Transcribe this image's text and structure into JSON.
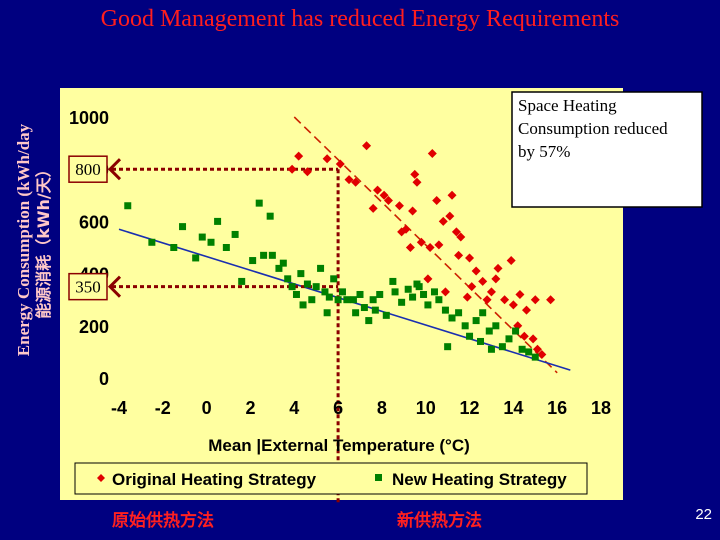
{
  "slide": {
    "title": "Good Management has reduced Energy Requirements",
    "page_number": "22",
    "caption_left": "原始供热方法",
    "caption_right": "新供热方法"
  },
  "chart_data": {
    "type": "scatter",
    "xlabel": "Mean |External Temperature (°C)",
    "ylabel": "Energy Consumption (kWh/day",
    "ylabel_zh": "能源消耗（kWh/天）",
    "xlim": [
      -4,
      18
    ],
    "ylim": [
      0,
      1000
    ],
    "x_ticks": [
      "-4",
      "-2",
      "0",
      "2",
      "4",
      "6",
      "8",
      "10",
      "12",
      "14",
      "16",
      "18"
    ],
    "y_ticks": [
      "0",
      "200",
      "400",
      "600",
      "800",
      "1000"
    ],
    "legend_position": "bottom",
    "annotation": "Space Heating Consumption reduced by 57%",
    "markers": [
      {
        "label": "800",
        "y": 800
      },
      {
        "label": "350",
        "y": 350
      }
    ],
    "guide_x": 6,
    "colors": {
      "original": "#e00000",
      "new": "#008000",
      "plot_bg": "#ffffa0",
      "frame_bg": "#ffff99"
    },
    "series": [
      {
        "name": "Original Heating Strategy",
        "marker": "diamond",
        "color": "#e00000",
        "trend": [
          [
            4,
            1000
          ],
          [
            16,
            20
          ]
        ],
        "points": [
          [
            4.2,
            850
          ],
          [
            3.9,
            800
          ],
          [
            4.6,
            790
          ],
          [
            5.5,
            840
          ],
          [
            6.1,
            820
          ],
          [
            6.5,
            760
          ],
          [
            7.3,
            890
          ],
          [
            6.8,
            750
          ],
          [
            7.8,
            720
          ],
          [
            8.1,
            700
          ],
          [
            7.6,
            650
          ],
          [
            8.3,
            680
          ],
          [
            8.8,
            660
          ],
          [
            9.4,
            640
          ],
          [
            9.5,
            780
          ],
          [
            9.6,
            750
          ],
          [
            9.1,
            570
          ],
          [
            8.9,
            560
          ],
          [
            9.3,
            500
          ],
          [
            9.8,
            520
          ],
          [
            10.2,
            500
          ],
          [
            10.6,
            510
          ],
          [
            10.8,
            600
          ],
          [
            11.1,
            620
          ],
          [
            10.5,
            680
          ],
          [
            11.2,
            700
          ],
          [
            10.3,
            860
          ],
          [
            11.4,
            560
          ],
          [
            11.6,
            540
          ],
          [
            11.5,
            470
          ],
          [
            12.0,
            460
          ],
          [
            12.3,
            410
          ],
          [
            12.1,
            350
          ],
          [
            12.6,
            370
          ],
          [
            13.0,
            330
          ],
          [
            13.2,
            380
          ],
          [
            13.6,
            300
          ],
          [
            14.0,
            280
          ],
          [
            14.3,
            320
          ],
          [
            14.6,
            260
          ],
          [
            15.0,
            300
          ],
          [
            15.7,
            300
          ],
          [
            13.3,
            420
          ],
          [
            13.9,
            450
          ],
          [
            12.8,
            300
          ],
          [
            11.9,
            310
          ],
          [
            14.5,
            160
          ],
          [
            14.9,
            150
          ],
          [
            15.1,
            110
          ],
          [
            15.3,
            90
          ],
          [
            14.2,
            200
          ],
          [
            10.9,
            330
          ],
          [
            10.1,
            380
          ]
        ]
      },
      {
        "name": "New Heating Strategy",
        "marker": "square",
        "color": "#008000",
        "trend": [
          [
            -4,
            570
          ],
          [
            16.6,
            30
          ]
        ],
        "points": [
          [
            -3.6,
            660
          ],
          [
            -2.5,
            520
          ],
          [
            -1.5,
            500
          ],
          [
            -1.1,
            580
          ],
          [
            -0.5,
            460
          ],
          [
            -0.2,
            540
          ],
          [
            0.2,
            520
          ],
          [
            0.5,
            600
          ],
          [
            0.9,
            500
          ],
          [
            1.3,
            550
          ],
          [
            1.6,
            370
          ],
          [
            2.1,
            450
          ],
          [
            2.6,
            470
          ],
          [
            2.4,
            670
          ],
          [
            2.9,
            620
          ],
          [
            3.0,
            470
          ],
          [
            3.3,
            420
          ],
          [
            3.5,
            440
          ],
          [
            3.7,
            380
          ],
          [
            3.9,
            350
          ],
          [
            4.1,
            320
          ],
          [
            4.3,
            400
          ],
          [
            4.6,
            360
          ],
          [
            4.8,
            300
          ],
          [
            5.0,
            350
          ],
          [
            5.2,
            420
          ],
          [
            5.4,
            330
          ],
          [
            5.6,
            310
          ],
          [
            5.8,
            380
          ],
          [
            6.0,
            300
          ],
          [
            6.2,
            330
          ],
          [
            6.4,
            300
          ],
          [
            6.7,
            300
          ],
          [
            7.0,
            320
          ],
          [
            7.2,
            270
          ],
          [
            7.4,
            220
          ],
          [
            7.6,
            300
          ],
          [
            7.9,
            320
          ],
          [
            8.2,
            240
          ],
          [
            8.6,
            330
          ],
          [
            8.9,
            290
          ],
          [
            9.2,
            340
          ],
          [
            9.4,
            310
          ],
          [
            9.7,
            350
          ],
          [
            9.9,
            320
          ],
          [
            10.1,
            280
          ],
          [
            10.4,
            330
          ],
          [
            10.6,
            300
          ],
          [
            10.9,
            260
          ],
          [
            11.2,
            230
          ],
          [
            11.5,
            250
          ],
          [
            11.8,
            200
          ],
          [
            12.0,
            160
          ],
          [
            12.3,
            220
          ],
          [
            12.6,
            250
          ],
          [
            12.9,
            180
          ],
          [
            13.2,
            200
          ],
          [
            13.5,
            120
          ],
          [
            13.8,
            150
          ],
          [
            14.1,
            180
          ],
          [
            14.4,
            110
          ],
          [
            14.7,
            100
          ],
          [
            15.0,
            80
          ],
          [
            11.0,
            120
          ],
          [
            12.5,
            140
          ],
          [
            13.0,
            110
          ],
          [
            6.8,
            250
          ],
          [
            7.7,
            260
          ],
          [
            5.5,
            250
          ],
          [
            4.4,
            280
          ],
          [
            8.5,
            370
          ],
          [
            9.6,
            360
          ]
        ]
      }
    ]
  }
}
